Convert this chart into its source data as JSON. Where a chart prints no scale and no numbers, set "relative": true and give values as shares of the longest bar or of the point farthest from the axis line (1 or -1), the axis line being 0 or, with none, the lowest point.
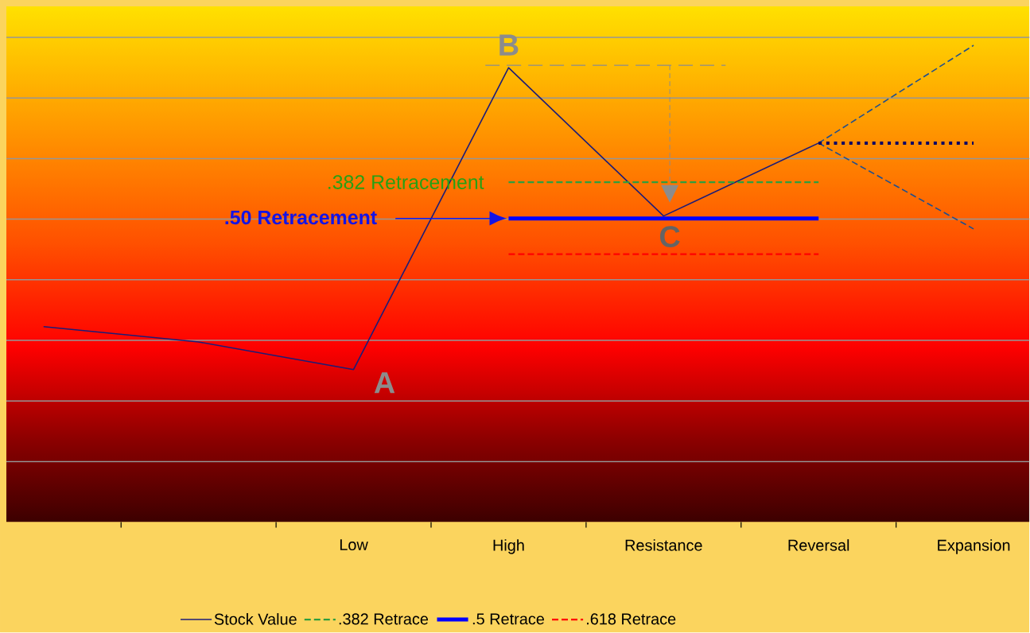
{
  "chart_data": {
    "type": "line",
    "relative": true,
    "grid": "y",
    "legend": "bottom",
    "categories": [
      null,
      null,
      "Low",
      "High",
      "Resistance",
      "Reversal",
      "Expansion"
    ],
    "series": [
      {
        "name": "Stock Value",
        "color": "#1c1c78",
        "line_style": "solid",
        "values": [
          0.41,
          0.378,
          0.32,
          0.953,
          0.642,
          0.795,
          null
        ]
      },
      {
        "name": ".382 Retrace",
        "color": "#2e9e3e",
        "line_style": "dashed",
        "values": [
          null,
          null,
          null,
          0.713,
          0.713,
          0.713,
          null
        ]
      },
      {
        "name": ".5 Retrace",
        "color": "#0000ff",
        "line_style": "solid",
        "values": [
          null,
          null,
          null,
          0.637,
          0.637,
          0.637,
          null
        ]
      },
      {
        "name": ".618 Retrace",
        "color": "#ff0000",
        "line_style": "dashed",
        "values": [
          null,
          null,
          null,
          0.562,
          0.562,
          0.562,
          null
        ]
      },
      {
        "color": "#1f4f8f",
        "line_style": "dashed",
        "values": [
          null,
          null,
          null,
          null,
          null,
          0.795,
          1.0
        ]
      },
      {
        "color": "#1f4f8f",
        "line_style": "dashed",
        "values": [
          null,
          null,
          null,
          null,
          null,
          0.795,
          0.615
        ]
      },
      {
        "color": "#000066",
        "line_style": "dotted",
        "values": [
          null,
          null,
          null,
          null,
          null,
          0.795,
          0.795
        ]
      }
    ],
    "annotations": [
      {
        "text": "A",
        "x": "Low",
        "y": 0.32
      },
      {
        "text": "B",
        "x": "High",
        "y": 0.953
      },
      {
        "text": "C",
        "x": "Resistance",
        "y": 0.637
      },
      {
        "text": ".382 Retracement",
        "x": "High",
        "y": 0.713
      },
      ".50 Retracement"
    ]
  }
}
